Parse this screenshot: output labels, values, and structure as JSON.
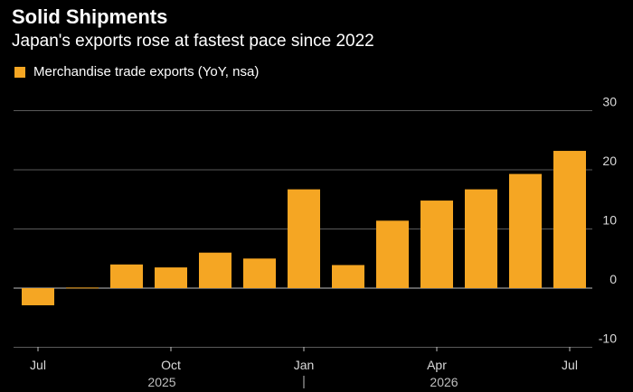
{
  "header": {
    "title": "Solid Shipments",
    "subtitle": "Japan's exports rose at fastest pace since 2022"
  },
  "chart_data": {
    "type": "bar",
    "title": "Solid Shipments",
    "subtitle": "Japan's exports rose at fastest pace since 2022",
    "categories": [
      "Jul 2025",
      "Aug 2025",
      "Sep 2025",
      "Oct 2025",
      "Nov 2025",
      "Dec 2025",
      "Jan 2026",
      "Feb 2026",
      "Mar 2026",
      "Apr 2026",
      "May 2026",
      "Jun 2026",
      "Jul 2026"
    ],
    "series": [
      {
        "name": "Merchandise trade exports (YoY, nsa)",
        "color": "#f5a623",
        "values": [
          -2.9,
          0.1,
          4.0,
          3.5,
          6.0,
          5.0,
          16.7,
          3.9,
          11.4,
          14.8,
          16.7,
          19.3,
          23.2
        ]
      }
    ],
    "x_tick_labels": [
      "Jul",
      "Oct",
      "Jan",
      "Apr",
      "Jul"
    ],
    "x_year_labels": [
      "2025",
      "2026"
    ],
    "y_ticks": [
      -10,
      0,
      10,
      20,
      30
    ],
    "ylim": [
      -10,
      30
    ],
    "grid": true,
    "y_axis_position": "right",
    "legend_position": "top-left"
  }
}
